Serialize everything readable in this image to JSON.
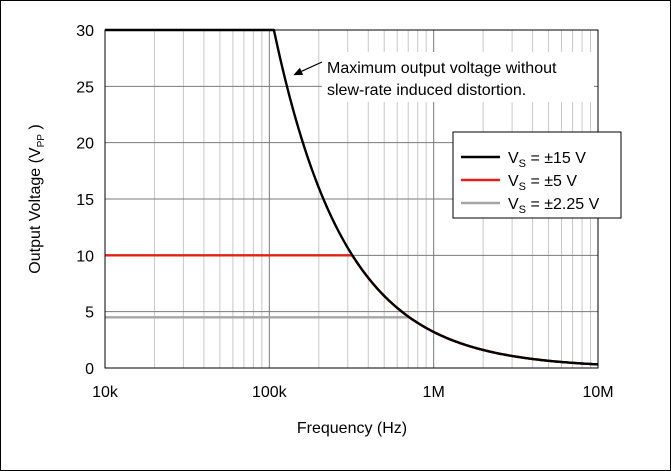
{
  "chart_data": {
    "type": "line",
    "xlabel": "Frequency (Hz)",
    "ylabel": "Output Voltage (V",
    "ylabel_sub": "PP",
    "ylabel_close": " )",
    "x_scale": "log",
    "xlim": [
      10000,
      10000000
    ],
    "ylim": [
      0,
      30
    ],
    "x_ticks": [
      {
        "value": 10000,
        "label": "10k"
      },
      {
        "value": 100000,
        "label": "100k"
      },
      {
        "value": 1000000,
        "label": "1M"
      },
      {
        "value": 10000000,
        "label": "10M"
      }
    ],
    "y_ticks": [
      {
        "value": 0,
        "label": "0"
      },
      {
        "value": 5,
        "label": "5"
      },
      {
        "value": 10,
        "label": "10"
      },
      {
        "value": 15,
        "label": "15"
      },
      {
        "value": 20,
        "label": "20"
      },
      {
        "value": 25,
        "label": "25"
      },
      {
        "value": 30,
        "label": "30"
      }
    ],
    "grid": true,
    "legend_position": "right",
    "annotation": {
      "lines": [
        "Maximum output voltage without",
        "slew-rate induced distortion."
      ],
      "arrow_target": {
        "x": 140000,
        "y": 26
      }
    },
    "series": [
      {
        "name_pre": "V",
        "name_sub": "S",
        "name_post": " = ±15 V",
        "color": "#000000",
        "plateau": 30
      },
      {
        "name_pre": "V",
        "name_sub": "S",
        "name_post": " = ±5 V",
        "color": "#e0201b",
        "plateau": 10
      },
      {
        "name_pre": "V",
        "name_sub": "S",
        "name_post": " = ±2.25 V",
        "color": "#a6a6a6",
        "plateau": 4.5
      }
    ],
    "rolloff_constant": 3200000
  }
}
